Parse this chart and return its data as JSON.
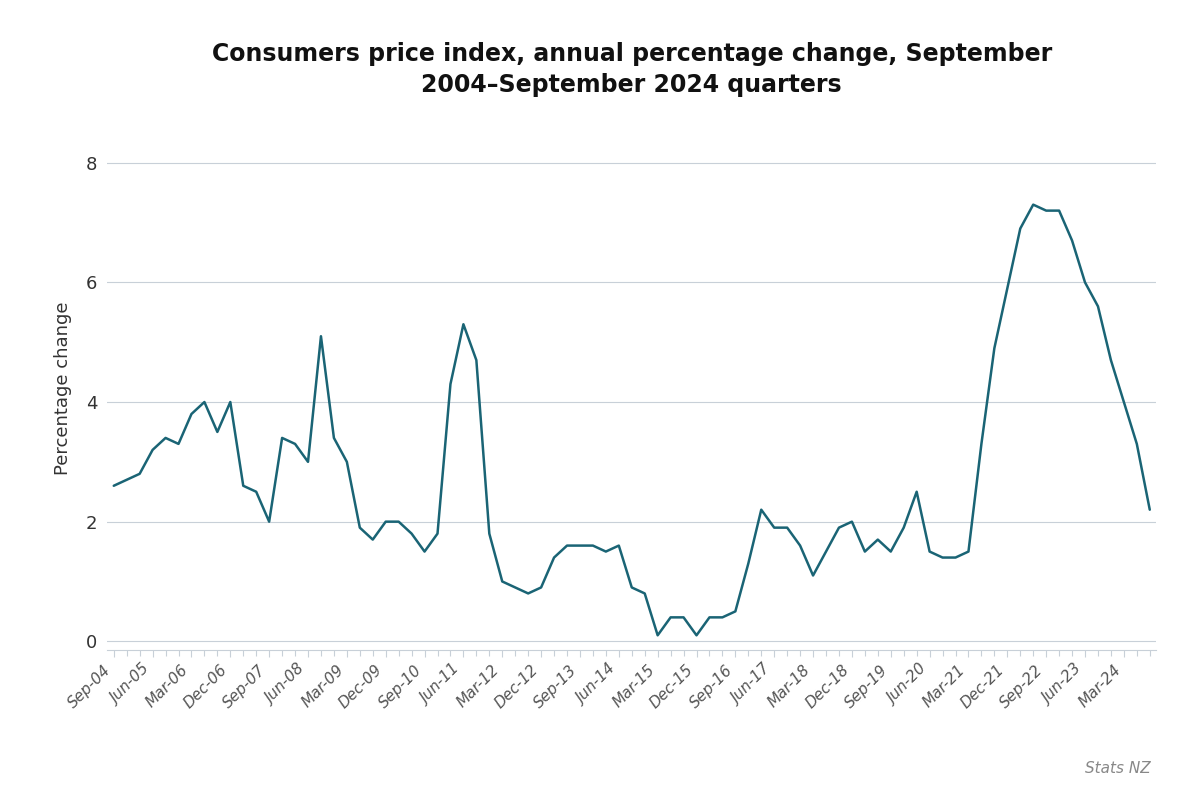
{
  "title_line1": "Consumers price index, annual percentage change, September",
  "title_line2": "2004–September 2024 quarters",
  "ylabel": "Percentage change",
  "source": "Stats NZ",
  "line_color": "#1a6475",
  "background_color": "#ffffff",
  "grid_color": "#c8d0d8",
  "quarters": [
    "Sep-04",
    "Dec-04",
    "Mar-05",
    "Jun-05",
    "Sep-05",
    "Dec-05",
    "Mar-06",
    "Jun-06",
    "Sep-06",
    "Dec-06",
    "Mar-07",
    "Jun-07",
    "Sep-07",
    "Dec-07",
    "Mar-08",
    "Jun-08",
    "Sep-08",
    "Dec-08",
    "Mar-09",
    "Jun-09",
    "Sep-09",
    "Dec-09",
    "Mar-10",
    "Jun-10",
    "Sep-10",
    "Dec-10",
    "Mar-11",
    "Jun-11",
    "Sep-11",
    "Dec-11",
    "Mar-12",
    "Jun-12",
    "Sep-12",
    "Dec-12",
    "Mar-13",
    "Jun-13",
    "Sep-13",
    "Dec-13",
    "Mar-14",
    "Jun-14",
    "Sep-14",
    "Dec-14",
    "Mar-15",
    "Jun-15",
    "Sep-15",
    "Dec-15",
    "Mar-16",
    "Jun-16",
    "Sep-16",
    "Dec-16",
    "Mar-17",
    "Jun-17",
    "Sep-17",
    "Dec-17",
    "Mar-18",
    "Jun-18",
    "Sep-18",
    "Dec-18",
    "Mar-19",
    "Jun-19",
    "Sep-19",
    "Dec-19",
    "Mar-20",
    "Jun-20",
    "Sep-20",
    "Dec-20",
    "Mar-21",
    "Jun-21",
    "Sep-21",
    "Dec-21",
    "Mar-22",
    "Jun-22",
    "Sep-22",
    "Dec-22",
    "Mar-23",
    "Jun-23",
    "Sep-23",
    "Dec-23",
    "Mar-24",
    "Jun-24",
    "Sep-24"
  ],
  "values": [
    2.6,
    2.7,
    2.8,
    3.2,
    3.4,
    3.3,
    3.8,
    4.0,
    3.5,
    4.0,
    2.6,
    2.5,
    2.0,
    3.4,
    3.3,
    3.0,
    5.1,
    3.4,
    3.0,
    1.9,
    1.7,
    2.0,
    2.0,
    1.8,
    1.5,
    1.8,
    4.3,
    5.3,
    4.7,
    1.8,
    1.0,
    0.9,
    0.8,
    0.9,
    1.4,
    1.6,
    1.6,
    1.6,
    1.5,
    1.6,
    0.9,
    0.8,
    0.1,
    0.4,
    0.4,
    0.1,
    0.4,
    0.4,
    0.5,
    1.3,
    2.2,
    1.9,
    1.9,
    1.6,
    1.1,
    1.5,
    1.9,
    2.0,
    1.5,
    1.7,
    1.5,
    1.9,
    2.5,
    1.5,
    1.4,
    1.4,
    1.5,
    3.3,
    4.9,
    5.9,
    6.9,
    7.3,
    7.2,
    7.2,
    6.7,
    6.0,
    5.6,
    4.7,
    4.0,
    3.3,
    2.2
  ]
}
